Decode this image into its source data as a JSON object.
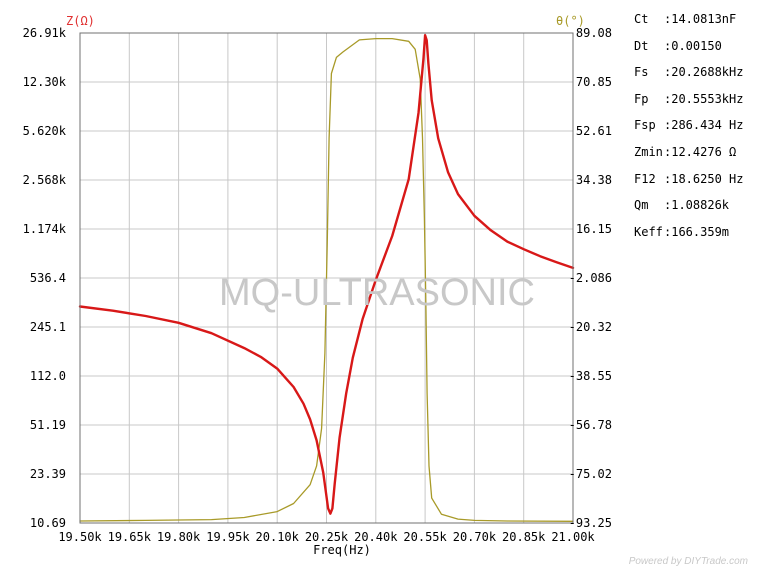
{
  "chart_data": {
    "type": "line",
    "left_axis_label": "Z(Ω)",
    "right_axis_label": "θ(°)",
    "xlabel": "Freq(Hz)",
    "left_ticks": [
      "26.91k",
      "12.30k",
      "5.620k",
      "2.568k",
      "1.174k",
      "536.4",
      "245.1",
      "112.0",
      "51.19",
      "23.39",
      "10.69"
    ],
    "right_ticks": [
      "89.08",
      "70.85",
      "52.61",
      "34.38",
      "16.15",
      "-2.086",
      "-20.32",
      "-38.55",
      "-56.78",
      "-75.02",
      "-93.25"
    ],
    "x_ticks": [
      "19.50k",
      "19.65k",
      "19.80k",
      "19.95k",
      "20.10k",
      "20.25k",
      "20.40k",
      "20.55k",
      "20.70k",
      "20.85k",
      "21.00k"
    ],
    "xlim": [
      19500,
      21000
    ],
    "ylim_left": [
      10.69,
      26910
    ],
    "ylim_right": [
      -93.25,
      89.08
    ],
    "y_scale_left": "log",
    "grid": true,
    "series": [
      {
        "color": "#d81818",
        "axis": "left",
        "x": [
          19500,
          19600,
          19700,
          19800,
          19900,
          20000,
          20050,
          20100,
          20150,
          20180,
          20200,
          20220,
          20240,
          20255,
          20262,
          20268,
          20275,
          20290,
          20310,
          20330,
          20360,
          20400,
          20450,
          20500,
          20530,
          20545,
          20550,
          20555,
          20560,
          20570,
          20590,
          20620,
          20650,
          20700,
          20750,
          20800,
          20850,
          20900,
          20950,
          21000
        ],
        "y": [
          340,
          318,
          292,
          262,
          222,
          175,
          152,
          126,
          94,
          72,
          56,
          40,
          24,
          13.5,
          12.43,
          13.5,
          20,
          42,
          85,
          150,
          280,
          520,
          1050,
          2600,
          7500,
          18000,
          26000,
          24000,
          16500,
          9200,
          5000,
          2900,
          2050,
          1450,
          1150,
          960,
          850,
          760,
          690,
          630
        ]
      },
      {
        "color": "#a89a28",
        "axis": "right",
        "x": [
          19500,
          19700,
          19900,
          20000,
          20100,
          20150,
          20200,
          20220,
          20235,
          20245,
          20252,
          20258,
          20265,
          20280,
          20300,
          20350,
          20400,
          20450,
          20500,
          20520,
          20535,
          20542,
          20548,
          20552,
          20556,
          20562,
          20570,
          20600,
          20650,
          20700,
          20800,
          21000
        ],
        "y": [
          -92.5,
          -92.3,
          -92,
          -91.2,
          -89,
          -86,
          -79,
          -72,
          -58,
          -30,
          10,
          50,
          74,
          80,
          82,
          86.5,
          87,
          87,
          86,
          83,
          72,
          50,
          20,
          -10,
          -45,
          -72,
          -84,
          -90,
          -91.8,
          -92.3,
          -92.5,
          -92.6
        ]
      }
    ]
  },
  "parameters": [
    {
      "name": "Ct",
      "value": ":14.0813nF"
    },
    {
      "name": "Dt",
      "value": ":0.00150"
    },
    {
      "name": "Fs",
      "value": ":20.2688kHz"
    },
    {
      "name": "Fp",
      "value": ":20.5553kHz"
    },
    {
      "name": "Fsp",
      "value": ":286.434 Hz"
    },
    {
      "name": "Zmin",
      "value": ":12.4276 Ω"
    },
    {
      "name": "F12",
      "value": ":18.6250 Hz"
    },
    {
      "name": "Qm",
      "value": ":1.08826k"
    },
    {
      "name": "Keff",
      "value": ":166.359m"
    }
  ],
  "watermark": "MQ-ULTRASONIC",
  "credit": "Powered by DIYTrade.com"
}
